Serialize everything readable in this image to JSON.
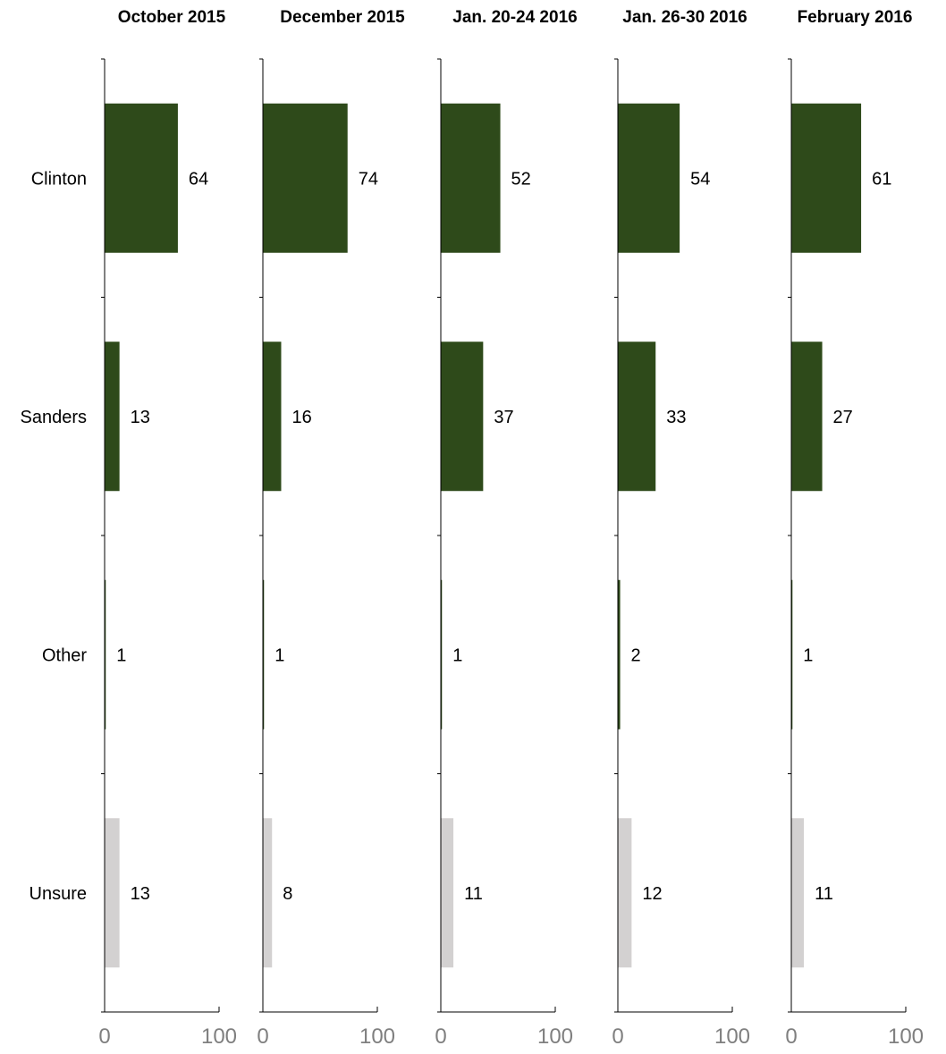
{
  "chart_data": {
    "type": "bar",
    "orientation": "horizontal",
    "categories": [
      "Clinton",
      "Sanders",
      "Other",
      "Unsure"
    ],
    "xlim": [
      0,
      100
    ],
    "x_tick_labels": [
      "0",
      "100"
    ],
    "grid": false,
    "colors": {
      "candidate": "#2e4a1a",
      "unsure": "#d3d1d1",
      "axis": "#000000",
      "tick_text": "#7f7f7f"
    },
    "panels": [
      {
        "title": "October 2015",
        "values": [
          64,
          13,
          1,
          13
        ]
      },
      {
        "title": "December 2015",
        "values": [
          74,
          16,
          1,
          8
        ]
      },
      {
        "title": "Jan. 20-24 2016",
        "values": [
          52,
          37,
          1,
          11
        ]
      },
      {
        "title": "Jan. 26-30 2016",
        "values": [
          54,
          33,
          2,
          12
        ]
      },
      {
        "title": "February 2016",
        "values": [
          61,
          27,
          1,
          11
        ]
      }
    ]
  }
}
